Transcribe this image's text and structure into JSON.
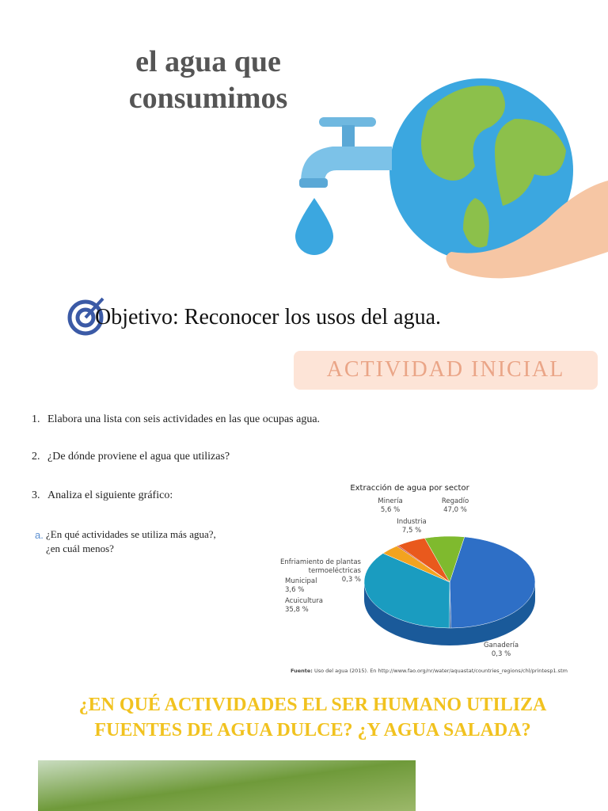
{
  "header": {
    "title_lines": [
      "el agua que",
      "consumimos"
    ]
  },
  "objective": "Objetivo: Reconocer los usos del agua.",
  "activity_banner": "ACTIVIDAD INICIAL",
  "questions": [
    {
      "number": "1.",
      "text": "Elabora una lista con seis actividades en las que ocupas agua."
    },
    {
      "number": "2.",
      "text": "¿De dónde proviene el agua que utilizas?"
    },
    {
      "number": "3.",
      "text": "Analiza el siguiente gráfico:"
    }
  ],
  "sub_question": {
    "marker": "a.",
    "lines": [
      "¿En qué actividades se utiliza más agua?,",
      "¿en cuál menos?"
    ]
  },
  "chart_data": {
    "type": "pie",
    "title": "Extracción de agua por sector",
    "categories": [
      "Regadío",
      "Ganadería",
      "Acuicultura",
      "Municipal",
      "Enfriamiento de plantas termoeléctricas",
      "Minería",
      "Industria"
    ],
    "values": [
      47.0,
      0.3,
      35.8,
      3.6,
      0.3,
      5.6,
      7.5
    ],
    "value_labels": [
      "47,0 %",
      "0,3 %",
      "35,8 %",
      "3,6 %",
      "0,3 %",
      "5,6 %",
      "7,5 %"
    ],
    "colors": [
      "#2e6fc6",
      "#1d4f93",
      "#1a9cc0",
      "#f3a31f",
      "#b8322a",
      "#e9591d",
      "#7fba2e"
    ],
    "source_label": "Fuente:",
    "source": "Uso del agua (2015). En http://www.fao.org/nr/water/aquastat/countries_regions/chl/printesp1.stm"
  },
  "question_heading": [
    "¿EN QUÉ ACTIVIDADES EL SER HUMANO UTILIZA",
    "FUENTES DE AGUA DULCE? ¿Y AGUA SALADA?"
  ]
}
